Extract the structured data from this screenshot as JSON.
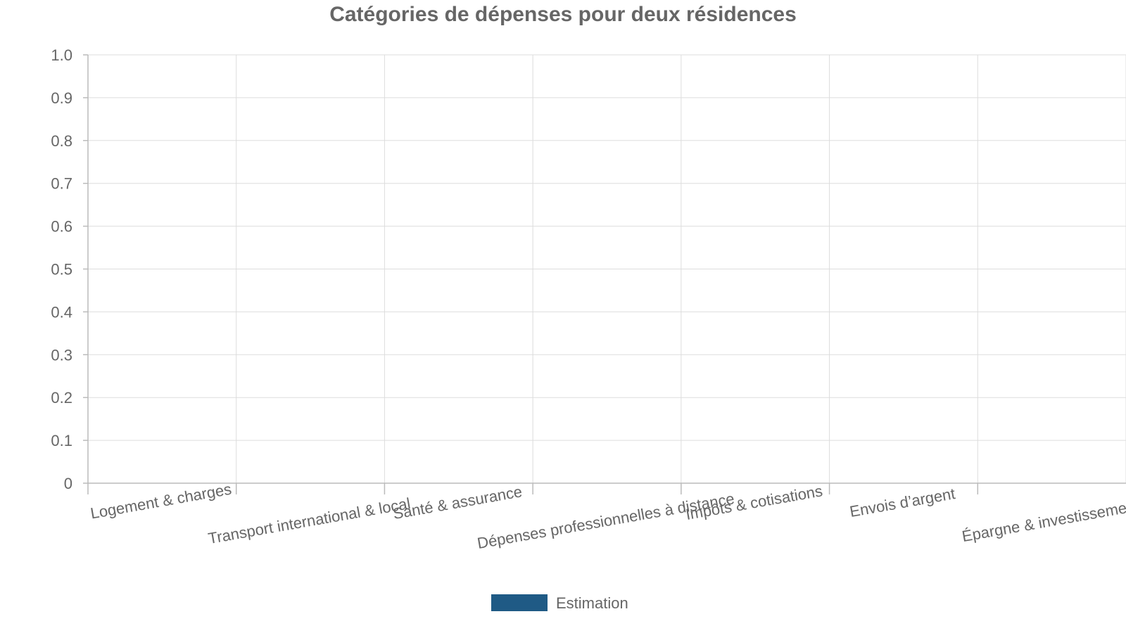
{
  "chart_data": {
    "type": "bar",
    "title": "Catégories de dépenses pour deux résidences",
    "xlabel": "",
    "ylabel": "",
    "categories": [
      "Logement & charges",
      "Transport international & local",
      "Santé & assurance",
      "Dépenses professionnelles à distance",
      "Impôts & cotisations",
      "Envois d’argent",
      "Épargne & investissement"
    ],
    "series": [
      {
        "name": "Estimation",
        "color": "#1f5a85",
        "values": [
          0,
          0,
          0,
          0,
          0,
          0,
          0
        ]
      }
    ],
    "ylim": [
      0,
      1.0
    ],
    "yticks": [
      "0",
      "0.1",
      "0.2",
      "0.3",
      "0.4",
      "0.5",
      "0.6",
      "0.7",
      "0.8",
      "0.9",
      "1.0"
    ],
    "grid": true,
    "legend_position": "bottom-center"
  }
}
